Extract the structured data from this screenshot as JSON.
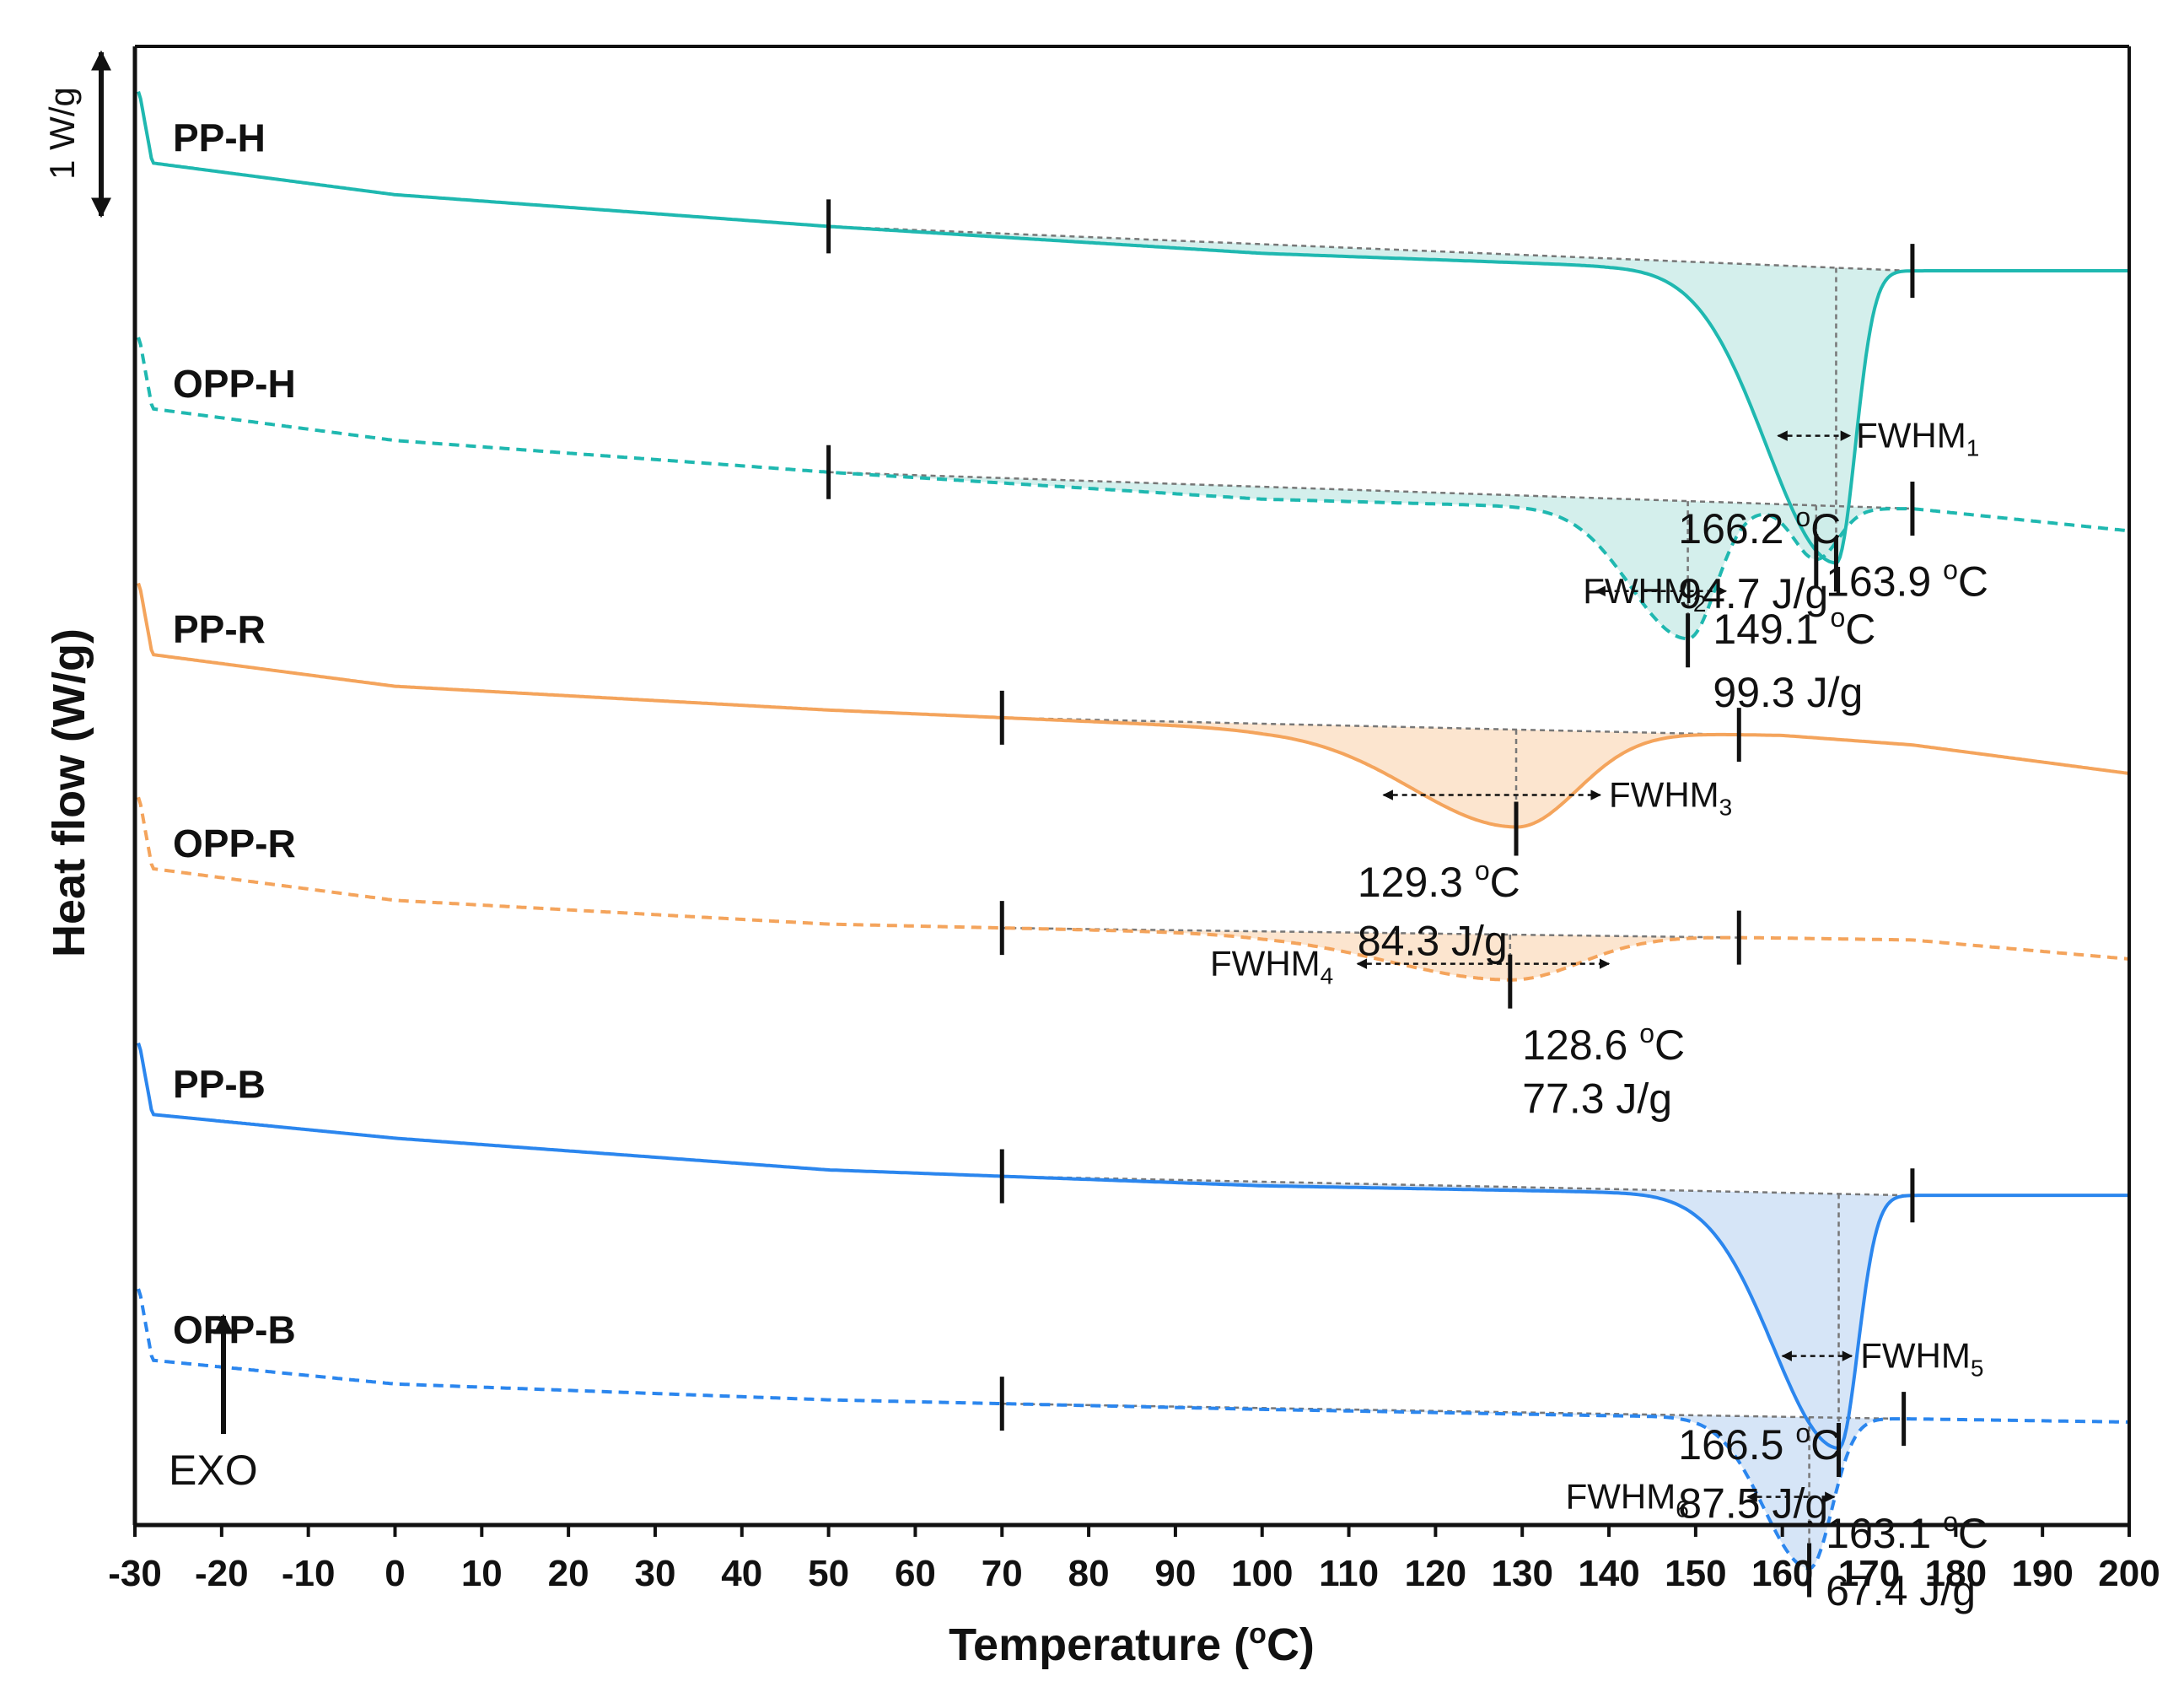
{
  "chart_data": {
    "type": "line",
    "xlabel": "Temperature (°C)",
    "xlabel_prefix": "Temperature (",
    "xlabel_unit_sup": "o",
    "xlabel_suffix": "C)",
    "ylabel": "Heat flow (W/g)",
    "xlim": [
      -30,
      200
    ],
    "x_ticks": [
      -30,
      -20,
      -10,
      0,
      10,
      20,
      30,
      40,
      50,
      60,
      70,
      80,
      90,
      100,
      110,
      120,
      130,
      140,
      150,
      160,
      170,
      180,
      190,
      200
    ],
    "x_tick_labels": [
      "-30",
      "-20",
      "-10",
      "0",
      "10",
      "20",
      "30",
      "40",
      "50",
      "60",
      "70",
      "80",
      "90",
      "100",
      "110",
      "120",
      "130",
      "140",
      "150",
      "160",
      "170",
      "180",
      "190",
      "200"
    ],
    "scale_bar": "1 W/g",
    "exo_label": "EXO",
    "colors": {
      "H": "#1fb8b0",
      "H_fill": "#cdece9",
      "R": "#f4a45c",
      "R_fill": "#fbe1c7",
      "B": "#2b86ee",
      "B_fill": "#cfe0f6",
      "axis": "#111111",
      "guide": "#777777"
    },
    "series": [
      {
        "name": "PP-H",
        "color": "#1fb8b0",
        "fill": "#cdece9",
        "dashed": false,
        "offset": 0.0,
        "baseline": [
          [
            -29.5,
            -0.3
          ],
          [
            -28,
            0.15
          ],
          [
            0,
            0.35
          ],
          [
            50,
            0.55
          ],
          [
            100,
            0.72
          ],
          [
            140,
            0.8
          ],
          [
            175,
            0.83
          ],
          [
            200,
            0.83
          ]
        ],
        "peaks": [
          {
            "center": 166.2,
            "depth": 1.85,
            "wl": 8,
            "wr": 2.2
          }
        ],
        "integration": [
          50,
          175
        ],
        "peak_temps": [
          166.2
        ],
        "fwhm": {
          "label": "FWHM",
          "sub": "1",
          "x1": 159.5,
          "x2": 167.8,
          "dy": 1.05,
          "dx_label": 168.5
        },
        "annotations": [
          {
            "text": "166.2 °C",
            "sup": "o",
            "num": "166.2 ",
            "unit": "C",
            "x": 148,
            "dy": 1.74,
            "anchor": "start"
          },
          {
            "text": "94.7 J/g",
            "x": 148,
            "dy": 2.15,
            "anchor": "start"
          }
        ]
      },
      {
        "name": "OPP-H",
        "color": "#1fb8b0",
        "fill": "#cdece9",
        "dashed": true,
        "offset": 1.55,
        "baseline": [
          [
            -29.5,
            -0.3
          ],
          [
            -28,
            0.15
          ],
          [
            0,
            0.35
          ],
          [
            50,
            0.55
          ],
          [
            100,
            0.72
          ],
          [
            140,
            0.78
          ],
          [
            175,
            0.78
          ],
          [
            200,
            0.92
          ]
        ],
        "peaks": [
          {
            "center": 149.1,
            "depth": 0.82,
            "wl": 6.5,
            "wr": 3.2
          },
          {
            "center": 163.9,
            "depth": 0.32,
            "wl": 2.5,
            "wr": 2.5
          }
        ],
        "integration": [
          50,
          175
        ],
        "peak_temps": [
          149.1,
          163.9
        ],
        "fwhm": {
          "label": "FWHM",
          "sub": "2",
          "x1": 138.5,
          "x2": 153.5,
          "dy": 0.52,
          "dx_label": 137
        },
        "annotations": [
          {
            "text": "163.9 °C",
            "num": "163.9 ",
            "unit": "C",
            "x": 165,
            "dy": 0.55,
            "anchor": "start"
          },
          {
            "text": "149.1 °C",
            "num": "149.1 ",
            "unit": "C",
            "x": 152,
            "dy": 0.85,
            "anchor": "start"
          },
          {
            "text": "99.3 J/g",
            "x": 152,
            "dy": 1.25,
            "anchor": "start"
          }
        ]
      },
      {
        "name": "PP-R",
        "color": "#f4a45c",
        "fill": "#fbe1c7",
        "dashed": false,
        "offset": 3.1,
        "baseline": [
          [
            -29.5,
            -0.3
          ],
          [
            -28,
            0.15
          ],
          [
            0,
            0.35
          ],
          [
            50,
            0.5
          ],
          [
            100,
            0.62
          ],
          [
            150,
            0.65
          ],
          [
            160,
            0.66
          ],
          [
            175,
            0.72
          ],
          [
            200,
            0.9
          ]
        ],
        "peaks": [
          {
            "center": 129.3,
            "depth": 0.6,
            "wl": 12,
            "wr": 7
          }
        ],
        "integration": [
          70,
          155
        ],
        "peak_temps": [
          129.3
        ],
        "fwhm": {
          "label": "FWHM",
          "sub": "3",
          "x1": 114,
          "x2": 139,
          "dy": 0.4,
          "dx_label": 140
        },
        "annotations": [
          {
            "text": "129.3 °C",
            "num": "129.3 ",
            "unit": "C",
            "x": 111,
            "dy": 1.05,
            "anchor": "start"
          },
          {
            "text": "84.3 J/g",
            "x": 111,
            "dy": 1.42,
            "anchor": "start"
          }
        ]
      },
      {
        "name": "OPP-R",
        "color": "#f4a45c",
        "fill": "#fbe1c7",
        "dashed": true,
        "offset": 4.45,
        "baseline": [
          [
            -29.5,
            -0.3
          ],
          [
            -28,
            0.15
          ],
          [
            0,
            0.35
          ],
          [
            50,
            0.5
          ],
          [
            100,
            0.56
          ],
          [
            150,
            0.58
          ],
          [
            175,
            0.6
          ],
          [
            200,
            0.72
          ]
        ],
        "peaks": [
          {
            "center": 128.6,
            "depth": 0.28,
            "wl": 14,
            "wr": 8
          }
        ],
        "integration": [
          70,
          155
        ],
        "peak_temps": [
          128.6
        ],
        "fwhm": {
          "label": "FWHM",
          "sub": "4",
          "x1": 111,
          "x2": 140,
          "dy": 0.18,
          "dx_label": 94
        },
        "annotations": [
          {
            "text": "128.6 °C",
            "num": "128.6 ",
            "unit": "C",
            "x": 130,
            "dy": 0.78,
            "anchor": "start"
          },
          {
            "text": "77.3 J/g",
            "x": 130,
            "dy": 1.12,
            "anchor": "start"
          }
        ]
      },
      {
        "name": "PP-B",
        "color": "#2b86ee",
        "fill": "#cfe0f6",
        "dashed": false,
        "offset": 6.0,
        "baseline": [
          [
            -29.5,
            -0.3
          ],
          [
            -28,
            0.15
          ],
          [
            0,
            0.3
          ],
          [
            50,
            0.5
          ],
          [
            100,
            0.6
          ],
          [
            140,
            0.64
          ],
          [
            175,
            0.66
          ],
          [
            200,
            0.66
          ]
        ],
        "peaks": [
          {
            "center": 166.5,
            "depth": 1.6,
            "wl": 7.5,
            "wr": 2.2
          }
        ],
        "integration": [
          70,
          175
        ],
        "peak_temps": [
          166.5
        ],
        "fwhm": {
          "label": "FWHM",
          "sub": "5",
          "x1": 160,
          "x2": 168,
          "dy": 1.02,
          "dx_label": 169
        },
        "annotations": [
          {
            "text": "166.5 °C",
            "num": "166.5 ",
            "unit": "C",
            "x": 148,
            "dy": 1.68,
            "anchor": "start"
          },
          {
            "text": "87.5 J/g",
            "x": 148,
            "dy": 2.05,
            "anchor": "start"
          }
        ]
      },
      {
        "name": "OPP-B",
        "color": "#2b86ee",
        "fill": "#cfe0f6",
        "dashed": true,
        "offset": 7.55,
        "baseline": [
          [
            -29.5,
            -0.3
          ],
          [
            -28,
            0.15
          ],
          [
            0,
            0.3
          ],
          [
            50,
            0.4
          ],
          [
            100,
            0.46
          ],
          [
            140,
            0.5
          ],
          [
            175,
            0.52
          ],
          [
            200,
            0.54
          ]
        ],
        "peaks": [
          {
            "center": 163.1,
            "depth": 0.95,
            "wl": 5.2,
            "wr": 2.6
          }
        ],
        "integration": [
          70,
          174
        ],
        "peak_temps": [
          163.1
        ],
        "fwhm": {
          "label": "FWHM",
          "sub": "6",
          "x1": 156,
          "x2": 166,
          "dy": 0.5,
          "dx_label": 135
        },
        "annotations": [
          {
            "text": "163.1 °C",
            "num": "163.1 ",
            "unit": "C",
            "x": 165,
            "dy": 0.82,
            "anchor": "start"
          },
          {
            "text": "67.4 J/g",
            "x": 165,
            "dy": 1.18,
            "anchor": "start"
          }
        ]
      }
    ]
  }
}
